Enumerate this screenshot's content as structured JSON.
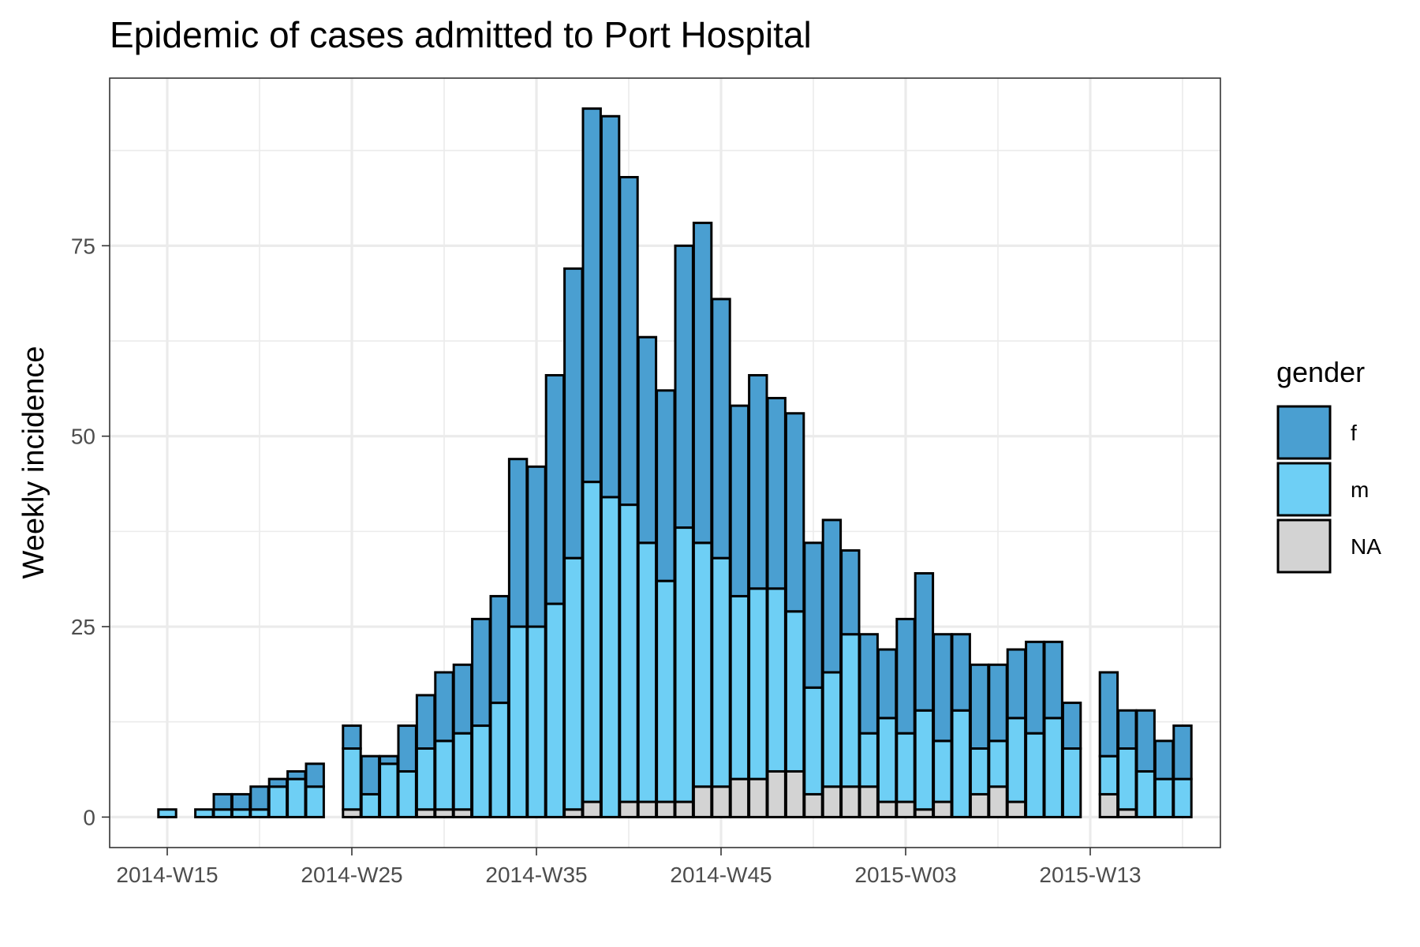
{
  "chart_data": {
    "type": "bar",
    "stacked": true,
    "title": "Epidemic of cases admitted to Port Hospital",
    "xlabel": "",
    "ylabel": "Weekly incidence",
    "x_ticks": [
      "2014-W15",
      "2014-W25",
      "2014-W35",
      "2014-W45",
      "2015-W03",
      "2015-W13"
    ],
    "y_ticks": [
      0,
      25,
      50,
      75
    ],
    "ylim": [
      -4,
      97
    ],
    "grid": true,
    "legend": {
      "title": "gender",
      "position": "right"
    },
    "weeks": [
      "2014-W15",
      "2014-W16",
      "2014-W17",
      "2014-W18",
      "2014-W19",
      "2014-W20",
      "2014-W21",
      "2014-W22",
      "2014-W23",
      "2014-W24",
      "2014-W25",
      "2014-W26",
      "2014-W27",
      "2014-W28",
      "2014-W29",
      "2014-W30",
      "2014-W31",
      "2014-W32",
      "2014-W33",
      "2014-W34",
      "2014-W35",
      "2014-W36",
      "2014-W37",
      "2014-W38",
      "2014-W39",
      "2014-W40",
      "2014-W41",
      "2014-W42",
      "2014-W43",
      "2014-W44",
      "2014-W45",
      "2014-W46",
      "2014-W47",
      "2014-W48",
      "2014-W49",
      "2014-W50",
      "2014-W51",
      "2014-W52",
      "2015-W01",
      "2015-W02",
      "2015-W03",
      "2015-W04",
      "2015-W05",
      "2015-W06",
      "2015-W07",
      "2015-W08",
      "2015-W09",
      "2015-W10",
      "2015-W11",
      "2015-W12",
      "2015-W13",
      "2015-W14",
      "2015-W15",
      "2015-W16",
      "2015-W17",
      "2015-W18"
    ],
    "series": [
      {
        "name": "NA",
        "color": "#d3d3d3",
        "values": [
          0,
          0,
          0,
          0,
          0,
          0,
          0,
          0,
          0,
          0,
          1,
          0,
          0,
          0,
          1,
          1,
          1,
          0,
          0,
          0,
          0,
          0,
          1,
          2,
          0,
          2,
          2,
          2,
          2,
          4,
          4,
          5,
          5,
          6,
          6,
          3,
          4,
          4,
          4,
          2,
          2,
          1,
          2,
          0,
          3,
          4,
          2,
          0,
          0,
          0,
          0,
          3,
          1,
          0,
          0,
          0
        ]
      },
      {
        "name": "m",
        "color": "#6ecff5",
        "values": [
          1,
          0,
          1,
          1,
          1,
          1,
          4,
          5,
          4,
          0,
          8,
          3,
          7,
          6,
          8,
          9,
          10,
          12,
          15,
          25,
          25,
          28,
          33,
          42,
          42,
          39,
          34,
          29,
          36,
          32,
          30,
          24,
          25,
          24,
          21,
          14,
          15,
          20,
          7,
          11,
          9,
          13,
          8,
          14,
          6,
          6,
          11,
          11,
          13,
          9,
          0,
          5,
          8,
          6,
          5,
          5
        ]
      },
      {
        "name": "f",
        "color": "#4a9fd1",
        "values": [
          0,
          0,
          0,
          2,
          2,
          3,
          1,
          1,
          3,
          0,
          3,
          5,
          1,
          6,
          7,
          9,
          9,
          14,
          14,
          22,
          21,
          30,
          38,
          49,
          50,
          43,
          27,
          25,
          37,
          42,
          34,
          25,
          28,
          25,
          26,
          19,
          20,
          11,
          13,
          9,
          15,
          18,
          14,
          10,
          11,
          10,
          9,
          12,
          10,
          6,
          0,
          11,
          5,
          8,
          5,
          7
        ]
      }
    ]
  }
}
